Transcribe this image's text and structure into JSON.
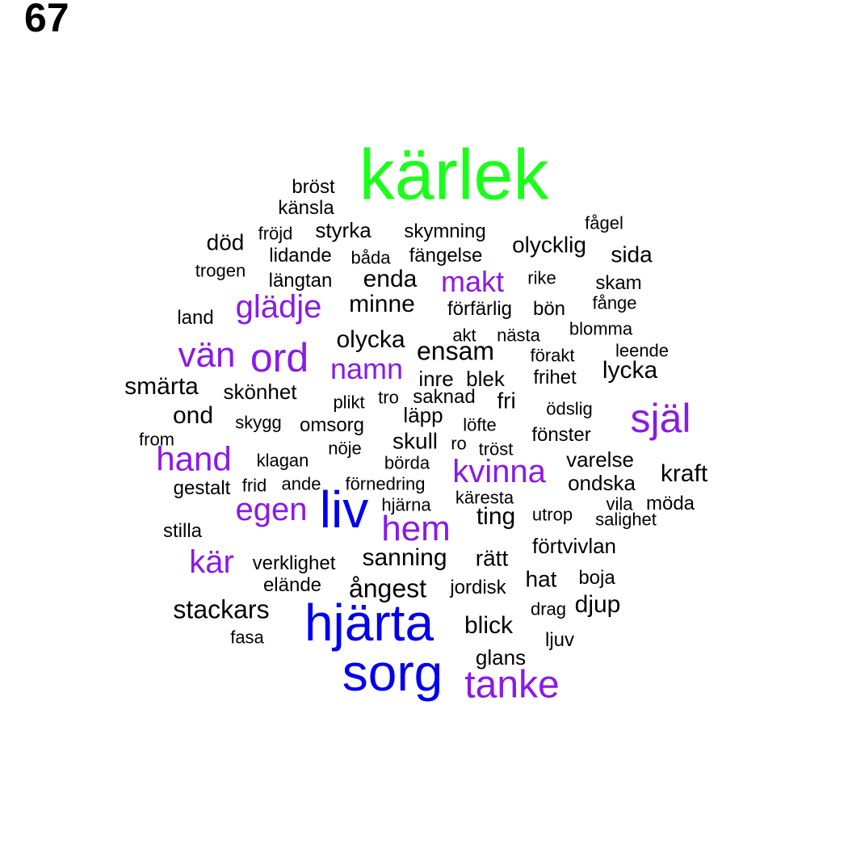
{
  "page_number": "67",
  "colors": {
    "green": "#1aff1a",
    "blue": "#0000ee",
    "purple": "#8a1ae6",
    "black": "#000000"
  },
  "words": [
    {
      "text": "kärlek",
      "color": "green",
      "weight": 5
    },
    {
      "text": "hjärta",
      "color": "blue",
      "weight": 4
    },
    {
      "text": "sorg",
      "color": "blue",
      "weight": 4
    },
    {
      "text": "liv",
      "color": "blue",
      "weight": 4
    },
    {
      "text": "själ",
      "color": "purple",
      "weight": 3
    },
    {
      "text": "tanke",
      "color": "purple",
      "weight": 3
    },
    {
      "text": "ord",
      "color": "purple",
      "weight": 3
    },
    {
      "text": "hem",
      "color": "purple",
      "weight": 3
    },
    {
      "text": "hand",
      "color": "purple",
      "weight": 3
    },
    {
      "text": "vän",
      "color": "purple",
      "weight": 3
    },
    {
      "text": "egen",
      "color": "purple",
      "weight": 3
    },
    {
      "text": "kvinna",
      "color": "purple",
      "weight": 3
    },
    {
      "text": "glädje",
      "color": "purple",
      "weight": 3
    },
    {
      "text": "namn",
      "color": "purple",
      "weight": 3
    },
    {
      "text": "makt",
      "color": "purple",
      "weight": 3
    },
    {
      "text": "kär",
      "color": "purple",
      "weight": 3
    },
    {
      "text": "bröst",
      "color": "black",
      "weight": 1
    },
    {
      "text": "känsla",
      "color": "black",
      "weight": 1
    },
    {
      "text": "fågel",
      "color": "black",
      "weight": 1
    },
    {
      "text": "fröjd",
      "color": "black",
      "weight": 1
    },
    {
      "text": "styrka",
      "color": "black",
      "weight": 1
    },
    {
      "text": "skymning",
      "color": "black",
      "weight": 1
    },
    {
      "text": "död",
      "color": "black",
      "weight": 2
    },
    {
      "text": "olycklig",
      "color": "black",
      "weight": 2
    },
    {
      "text": "lidande",
      "color": "black",
      "weight": 1
    },
    {
      "text": "båda",
      "color": "black",
      "weight": 1
    },
    {
      "text": "fängelse",
      "color": "black",
      "weight": 1
    },
    {
      "text": "sida",
      "color": "black",
      "weight": 2
    },
    {
      "text": "trogen",
      "color": "black",
      "weight": 1
    },
    {
      "text": "längtan",
      "color": "black",
      "weight": 1
    },
    {
      "text": "enda",
      "color": "black",
      "weight": 2
    },
    {
      "text": "rike",
      "color": "black",
      "weight": 1
    },
    {
      "text": "skam",
      "color": "black",
      "weight": 1
    },
    {
      "text": "fånge",
      "color": "black",
      "weight": 1
    },
    {
      "text": "land",
      "color": "black",
      "weight": 1
    },
    {
      "text": "minne",
      "color": "black",
      "weight": 2
    },
    {
      "text": "förfärlig",
      "color": "black",
      "weight": 1
    },
    {
      "text": "bön",
      "color": "black",
      "weight": 1
    },
    {
      "text": "blomma",
      "color": "black",
      "weight": 1
    },
    {
      "text": "akt",
      "color": "black",
      "weight": 1
    },
    {
      "text": "nästa",
      "color": "black",
      "weight": 1
    },
    {
      "text": "olycka",
      "color": "black",
      "weight": 2
    },
    {
      "text": "ensam",
      "color": "black",
      "weight": 2
    },
    {
      "text": "förakt",
      "color": "black",
      "weight": 1
    },
    {
      "text": "leende",
      "color": "black",
      "weight": 1
    },
    {
      "text": "inre",
      "color": "black",
      "weight": 1
    },
    {
      "text": "blek",
      "color": "black",
      "weight": 1
    },
    {
      "text": "frihet",
      "color": "black",
      "weight": 1
    },
    {
      "text": "lycka",
      "color": "black",
      "weight": 2
    },
    {
      "text": "smärta",
      "color": "black",
      "weight": 2
    },
    {
      "text": "skönhet",
      "color": "black",
      "weight": 1
    },
    {
      "text": "plikt",
      "color": "black",
      "weight": 1
    },
    {
      "text": "tro",
      "color": "black",
      "weight": 1
    },
    {
      "text": "saknad",
      "color": "black",
      "weight": 1
    },
    {
      "text": "fri",
      "color": "black",
      "weight": 1
    },
    {
      "text": "ödslig",
      "color": "black",
      "weight": 1
    },
    {
      "text": "ond",
      "color": "black",
      "weight": 2
    },
    {
      "text": "skygg",
      "color": "black",
      "weight": 1
    },
    {
      "text": "omsorg",
      "color": "black",
      "weight": 1
    },
    {
      "text": "läpp",
      "color": "black",
      "weight": 1
    },
    {
      "text": "löfte",
      "color": "black",
      "weight": 1
    },
    {
      "text": "from",
      "color": "black",
      "weight": 1
    },
    {
      "text": "nöje",
      "color": "black",
      "weight": 1
    },
    {
      "text": "skull",
      "color": "black",
      "weight": 1
    },
    {
      "text": "ro",
      "color": "black",
      "weight": 1
    },
    {
      "text": "tröst",
      "color": "black",
      "weight": 1
    },
    {
      "text": "fönster",
      "color": "black",
      "weight": 1
    },
    {
      "text": "klagan",
      "color": "black",
      "weight": 1
    },
    {
      "text": "börda",
      "color": "black",
      "weight": 1
    },
    {
      "text": "varelse",
      "color": "black",
      "weight": 1
    },
    {
      "text": "kraft",
      "color": "black",
      "weight": 2
    },
    {
      "text": "gestalt",
      "color": "black",
      "weight": 1
    },
    {
      "text": "frid",
      "color": "black",
      "weight": 1
    },
    {
      "text": "ande",
      "color": "black",
      "weight": 1
    },
    {
      "text": "förnedring",
      "color": "black",
      "weight": 1
    },
    {
      "text": "ondska",
      "color": "black",
      "weight": 1
    },
    {
      "text": "käresta",
      "color": "black",
      "weight": 1
    },
    {
      "text": "vila",
      "color": "black",
      "weight": 1
    },
    {
      "text": "möda",
      "color": "black",
      "weight": 1
    },
    {
      "text": "hjärna",
      "color": "black",
      "weight": 1
    },
    {
      "text": "ting",
      "color": "black",
      "weight": 2
    },
    {
      "text": "utrop",
      "color": "black",
      "weight": 1
    },
    {
      "text": "salighet",
      "color": "black",
      "weight": 1
    },
    {
      "text": "stilla",
      "color": "black",
      "weight": 1
    },
    {
      "text": "förtvivlan",
      "color": "black",
      "weight": 1
    },
    {
      "text": "verklighet",
      "color": "black",
      "weight": 1
    },
    {
      "text": "sanning",
      "color": "black",
      "weight": 2
    },
    {
      "text": "rätt",
      "color": "black",
      "weight": 2
    },
    {
      "text": "hat",
      "color": "black",
      "weight": 2
    },
    {
      "text": "boja",
      "color": "black",
      "weight": 1
    },
    {
      "text": "elände",
      "color": "black",
      "weight": 1
    },
    {
      "text": "ångest",
      "color": "black",
      "weight": 2
    },
    {
      "text": "jordisk",
      "color": "black",
      "weight": 1
    },
    {
      "text": "drag",
      "color": "black",
      "weight": 1
    },
    {
      "text": "djup",
      "color": "black",
      "weight": 2
    },
    {
      "text": "stackars",
      "color": "black",
      "weight": 2
    },
    {
      "text": "blick",
      "color": "black",
      "weight": 2
    },
    {
      "text": "fasa",
      "color": "black",
      "weight": 1
    },
    {
      "text": "ljuv",
      "color": "black",
      "weight": 1
    },
    {
      "text": "glans",
      "color": "black",
      "weight": 1
    }
  ]
}
